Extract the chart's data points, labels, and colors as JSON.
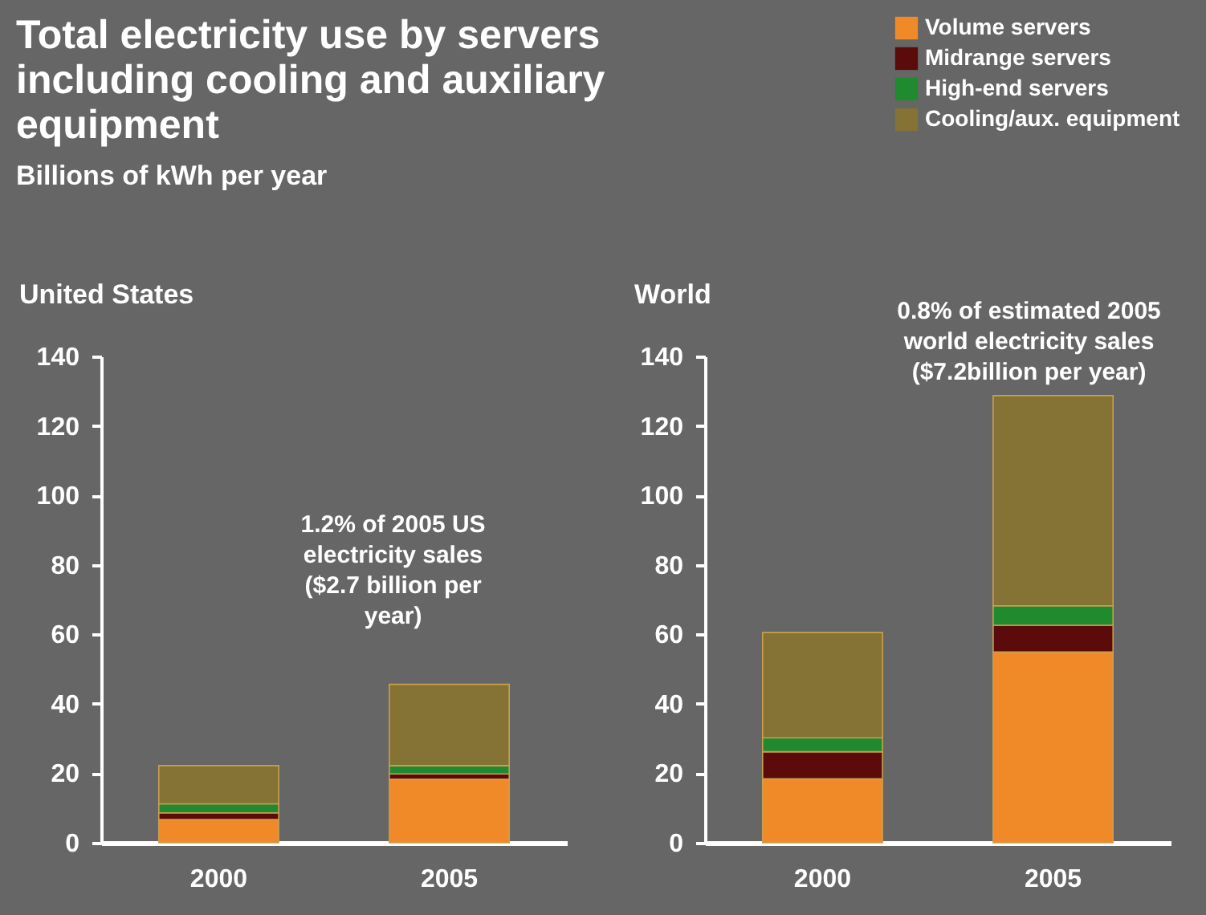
{
  "chart_data": [
    {
      "type": "bar",
      "title": "Total electricity use by servers including cooling and auxiliary equipment",
      "subtitle": "Billions of kWh per year",
      "stacked": true,
      "categories": [
        "2000",
        "2005"
      ],
      "ylim": [
        0,
        140
      ],
      "yticks": [
        0,
        20,
        40,
        60,
        80,
        100,
        120,
        140
      ],
      "annotations": [
        "United States",
        {
          "text": "1.2% of 2005 US electricity sales ($2.7 billion per year)",
          "x": "2005",
          "y": 45.6
        }
      ],
      "series": [
        {
          "color": "#f08a28",
          "values": [
            6.7,
            18.3
          ]
        },
        {
          "color": "#5c0b0b",
          "values": [
            1.9,
            1.5
          ]
        },
        {
          "color": "#1f8a2e",
          "values": [
            2.6,
            2.4
          ]
        },
        {
          "color": "#857235",
          "values": [
            11.0,
            23.4
          ]
        }
      ]
    },
    {
      "type": "bar",
      "title": "World",
      "stacked": true,
      "legend": "top right",
      "categories": [
        "2000",
        "2005"
      ],
      "ylim": [
        0,
        140
      ],
      "yticks": [
        0,
        20,
        40,
        60,
        80,
        100,
        120,
        140
      ],
      "annotations": [
        {
          "text": "0.8% of estimated 2005 world electricity sales ($7.2billion per year)",
          "x": "2005",
          "y": 128.7
        }
      ],
      "series": [
        {
          "name": "Volume servers",
          "color": "#f08a28",
          "values": [
            18.4,
            54.9
          ]
        },
        {
          "name": "Midrange servers",
          "color": "#5c0b0b",
          "values": [
            7.8,
            7.7
          ]
        },
        {
          "name": "High-end servers",
          "color": "#1f8a2e",
          "values": [
            4.0,
            5.6
          ]
        },
        {
          "name": "Cooling/aux. equipment",
          "color": "#857235",
          "values": [
            30.3,
            60.5
          ]
        }
      ]
    }
  ]
}
